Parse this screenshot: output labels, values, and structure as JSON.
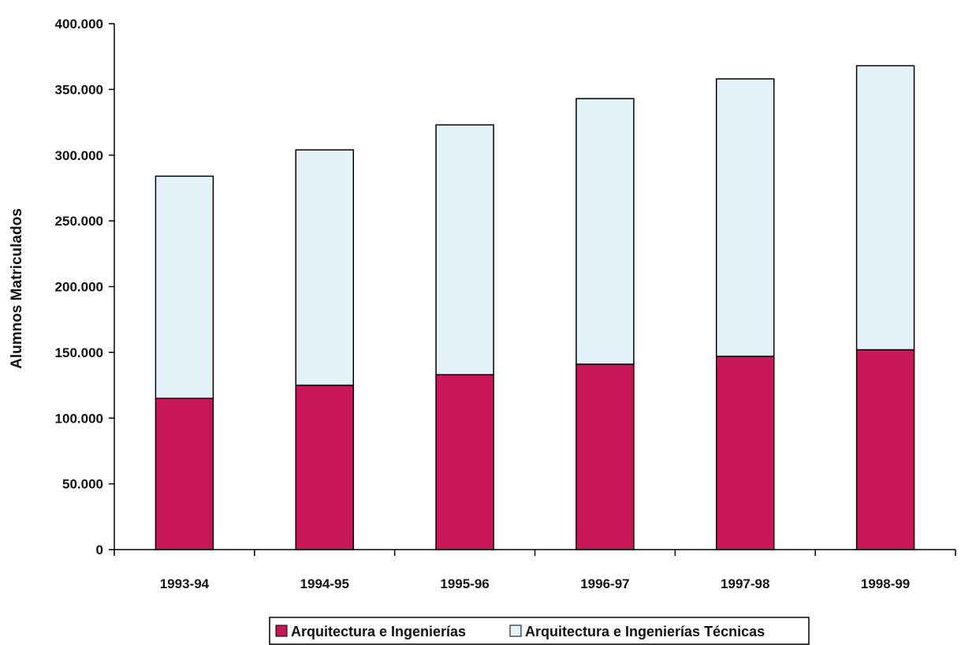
{
  "chart_data": {
    "type": "bar",
    "stacked": true,
    "categories": [
      "1993-94",
      "1994-95",
      "1995-96",
      "1996-97",
      "1997-98",
      "1998-99"
    ],
    "series": [
      {
        "name": "Arquitectura e Ingenierías",
        "values": [
          115000,
          125000,
          133000,
          141000,
          147000,
          152000
        ],
        "color": "#c8185a"
      },
      {
        "name": "Arquitectura e Ingenierías Técnicas",
        "values": [
          169000,
          179000,
          190000,
          202000,
          211000,
          216000
        ],
        "color": "#e4f3fa"
      }
    ],
    "title": "",
    "xlabel": "",
    "ylabel": "Alumnos Matriculados",
    "ylim": [
      0,
      400000
    ],
    "yticks": [
      0,
      50000,
      100000,
      150000,
      200000,
      250000,
      300000,
      350000,
      400000
    ],
    "ytick_labels": [
      "0",
      "50.000",
      "100.000",
      "150.000",
      "200.000",
      "250.000",
      "300.000",
      "350.000",
      "400.000"
    ],
    "grid": false,
    "legend_position": "bottom-center"
  }
}
